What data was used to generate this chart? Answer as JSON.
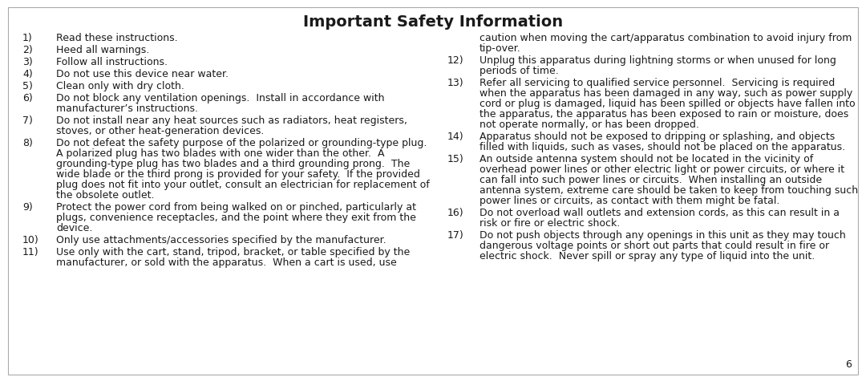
{
  "title": "Important Safety Information",
  "background_color": "#ffffff",
  "border_color": "#aaaaaa",
  "text_color": "#1a1a1a",
  "page_number": "6",
  "title_fontsize": 14.0,
  "body_fontsize": 9.0,
  "left_col_items": [
    {
      "num": "1)",
      "text": "Read these instructions."
    },
    {
      "num": "2)",
      "text": "Heed all warnings."
    },
    {
      "num": "3)",
      "text": "Follow all instructions."
    },
    {
      "num": "4)",
      "text": "Do not use this device near water."
    },
    {
      "num": "5)",
      "text": "Clean only with dry cloth."
    },
    {
      "num": "6)",
      "text": "Do not block any ventilation openings.  Install in accordance with\nmanufacturer’s instructions."
    },
    {
      "num": "7)",
      "text": "Do not install near any heat sources such as radiators, heat registers,\nstoves, or other heat-generation devices."
    },
    {
      "num": "8)",
      "text": "Do not defeat the safety purpose of the polarized or grounding-type plug.\nA polarized plug has two blades with one wider than the other.  A\ngrounding-type plug has two blades and a third grounding prong.  The\nwide blade or the third prong is provided for your safety.  If the provided\nplug does not fit into your outlet, consult an electrician for replacement of\nthe obsolete outlet."
    },
    {
      "num": "9)",
      "text": "Protect the power cord from being walked on or pinched, particularly at\nplugs, convenience receptacles, and the point where they exit from the\ndevice."
    },
    {
      "num": "10)",
      "text": "Only use attachments/accessories specified by the manufacturer."
    },
    {
      "num": "11)",
      "text": "Use only with the cart, stand, tripod, bracket, or table specified by the\nmanufacturer, or sold with the apparatus.  When a cart is used, use"
    }
  ],
  "right_col_continuation": "caution when moving the cart/apparatus combination to avoid injury from\ntip-over.",
  "right_col_items": [
    {
      "num": "12)",
      "text": "Unplug this apparatus during lightning storms or when unused for long\nperiods of time."
    },
    {
      "num": "13)",
      "text": "Refer all servicing to qualified service personnel.  Servicing is required\nwhen the apparatus has been damaged in any way, such as power supply\ncord or plug is damaged, liquid has been spilled or objects have fallen into\nthe apparatus, the apparatus has been exposed to rain or moisture, does\nnot operate normally, or has been dropped."
    },
    {
      "num": "14)",
      "text": "Apparatus should not be exposed to dripping or splashing, and objects\nfilled with liquids, such as vases, should not be placed on the apparatus."
    },
    {
      "num": "15)",
      "text": "An outside antenna system should not be located in the vicinity of\noverhead power lines or other electric light or power circuits, or where it\ncan fall into such power lines or circuits.  When installing an outside\nantenna system, extreme care should be taken to keep from touching such\npower lines or circuits, as contact with them might be fatal."
    },
    {
      "num": "16)",
      "text": "Do not overload wall outlets and extension cords, as this can result in a\nrisk or fire or electric shock."
    },
    {
      "num": "17)",
      "text": "Do not push objects through any openings in this unit as they may touch\ndangerous voltage points or short out parts that could result in fire or\nelectric shock.  Never spill or spray any type of liquid into the unit."
    }
  ]
}
